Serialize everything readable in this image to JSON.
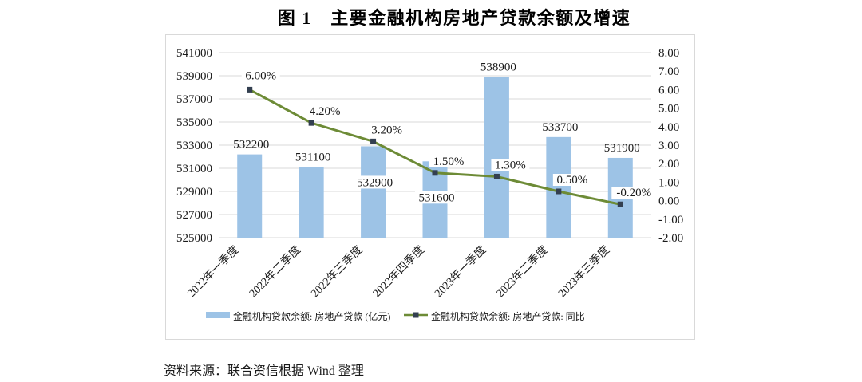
{
  "title": "图 1　主要金融机构房地产贷款余额及增速",
  "source_note": "资料来源：联合资信根据 Wind 整理",
  "colors": {
    "bar": "#9dc3e6",
    "line": "#6d8b36",
    "marker": "#333f50",
    "grid": "#d9d9d9",
    "text": "#1a1a1a"
  },
  "chart_data": {
    "type": "combo-bar-line",
    "categories": [
      "2022年一季度",
      "2022年二季度",
      "2022年三季度",
      "2022年四季度",
      "2023年一季度",
      "2023年二季度",
      "2023年三季度"
    ],
    "series": [
      {
        "name": "金融机构贷款余额: 房地产贷款 (亿元)",
        "type": "bar",
        "values": [
          532200,
          531100,
          532900,
          531600,
          538900,
          533700,
          531900
        ],
        "labels": [
          "532200",
          "531100",
          "532900",
          "531600",
          "538900",
          "533700",
          "531900"
        ],
        "label_placement": [
          "above",
          "above",
          "inside",
          "inside",
          "above",
          "above",
          "above"
        ]
      },
      {
        "name": "金融机构贷款余额: 房地产贷款: 同比",
        "type": "line",
        "values": [
          6.0,
          4.2,
          3.2,
          1.5,
          1.3,
          0.5,
          -0.2
        ],
        "labels": [
          "6.00%",
          "4.20%",
          "3.20%",
          "1.50%",
          "1.30%",
          "0.50%",
          "-0.20%"
        ]
      }
    ],
    "left_axis": {
      "min": 525000,
      "max": 541000,
      "step": 2000,
      "ticks": [
        "541000",
        "539000",
        "537000",
        "535000",
        "533000",
        "531000",
        "529000",
        "527000",
        "525000"
      ]
    },
    "right_axis": {
      "min": -2,
      "max": 8,
      "step": 1,
      "ticks": [
        "8.00",
        "7.00",
        "6.00",
        "5.00",
        "4.00",
        "3.00",
        "2.00",
        "1.00",
        "0.00",
        "-1.00",
        "-2.00"
      ]
    },
    "grid": true,
    "legend_position": "bottom"
  }
}
